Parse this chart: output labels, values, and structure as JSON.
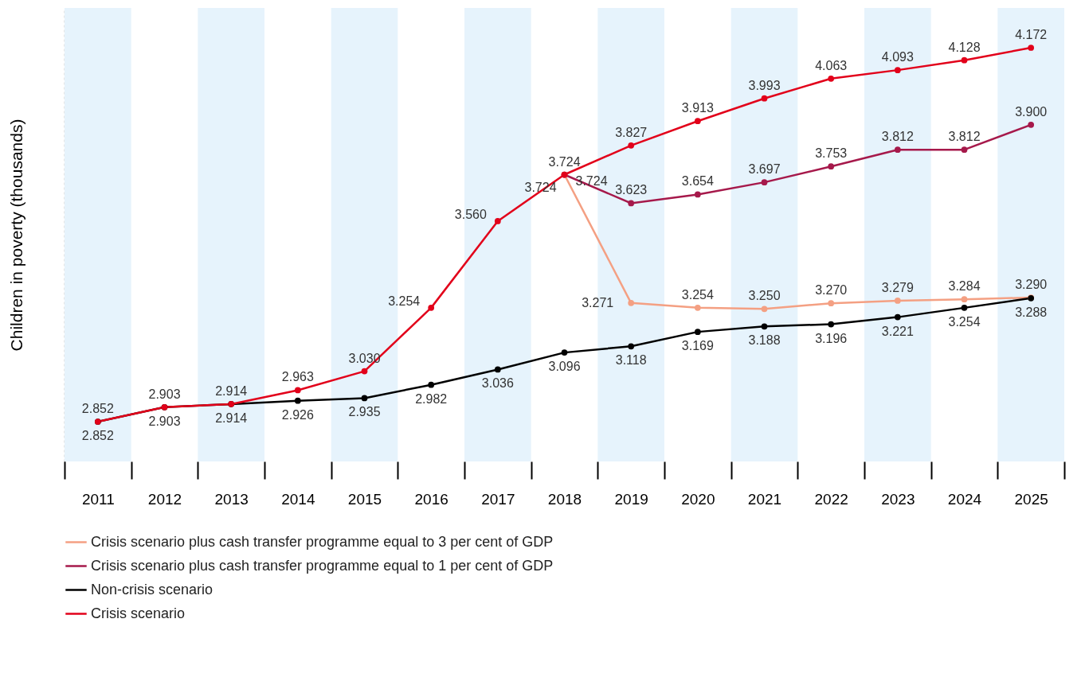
{
  "chart_data": {
    "type": "line",
    "ylabel": "Children in poverty (thousands)",
    "categories": [
      "2011",
      "2012",
      "2013",
      "2014",
      "2015",
      "2016",
      "2017",
      "2018",
      "2019",
      "2020",
      "2021",
      "2022",
      "2023",
      "2024",
      "2025"
    ],
    "series": [
      {
        "name": "Crisis scenario plus cash transfer programme equal to 3 per cent of GDP",
        "color": "#f4a083",
        "values": [
          null,
          null,
          null,
          null,
          null,
          null,
          null,
          3.724,
          3.271,
          3.254,
          3.25,
          3.27,
          3.279,
          3.284,
          3.29
        ],
        "value_labels": [
          null,
          null,
          null,
          null,
          null,
          null,
          null,
          "3.724",
          "3.271",
          "3.254",
          "3.250",
          "3.270",
          "3.279",
          "3.284",
          "3.290"
        ]
      },
      {
        "name": "Crisis scenario plus cash transfer programme equal to 1 per cent of GDP",
        "color": "#a6194b",
        "values": [
          null,
          null,
          null,
          null,
          null,
          null,
          null,
          3.724,
          3.623,
          3.654,
          3.697,
          3.753,
          3.812,
          3.812,
          3.9
        ],
        "value_labels": [
          null,
          null,
          null,
          null,
          null,
          null,
          null,
          "3.724",
          "3.623",
          "3.654",
          "3.697",
          "3.753",
          "3.812",
          "3.812",
          "3.900"
        ]
      },
      {
        "name": "Non-crisis scenario",
        "color": "#000000",
        "values": [
          2.852,
          2.903,
          2.914,
          2.926,
          2.935,
          2.982,
          3.036,
          3.096,
          3.118,
          3.169,
          3.188,
          3.196,
          3.221,
          3.254,
          3.288
        ],
        "value_labels": [
          "2.852",
          "2.903",
          "2.914",
          "2.926",
          "2.935",
          "2.982",
          "3.036",
          "3.096",
          "3.118",
          "3.169",
          "3.188",
          "3.196",
          "3.221",
          "3.254",
          "3.288"
        ]
      },
      {
        "name": "Crisis scenario",
        "color": "#e2001a",
        "values": [
          2.852,
          2.903,
          2.914,
          2.963,
          3.03,
          3.254,
          3.56,
          3.724,
          3.827,
          3.913,
          3.993,
          4.063,
          4.093,
          4.128,
          4.172
        ],
        "value_labels": [
          "2.852",
          "2.903",
          "2.914",
          "2.963",
          "3.030",
          "3.254",
          "3.560",
          "3.724",
          "3.827",
          "3.913",
          "3.993",
          "4.063",
          "4.093",
          "4.128",
          "4.172"
        ]
      }
    ],
    "bands": [
      {
        "axis": "x",
        "from": "2011",
        "to": "2011",
        "color": "#e6f3fc"
      },
      {
        "axis": "x",
        "from": "2013",
        "to": "2013",
        "color": "#e6f3fc"
      },
      {
        "axis": "x",
        "from": "2015",
        "to": "2015",
        "color": "#e6f3fc"
      },
      {
        "axis": "x",
        "from": "2017",
        "to": "2017",
        "color": "#e6f3fc"
      },
      {
        "axis": "x",
        "from": "2019",
        "to": "2019",
        "color": "#e6f3fc"
      },
      {
        "axis": "x",
        "from": "2021",
        "to": "2021",
        "color": "#e6f3fc"
      },
      {
        "axis": "x",
        "from": "2023",
        "to": "2023",
        "color": "#e6f3fc"
      },
      {
        "axis": "x",
        "from": "2025",
        "to": "2025",
        "color": "#e6f3fc"
      }
    ],
    "marker": "circle",
    "line_style": "solid",
    "grid": false,
    "legend": "bottom",
    "tick_labels": "x"
  }
}
